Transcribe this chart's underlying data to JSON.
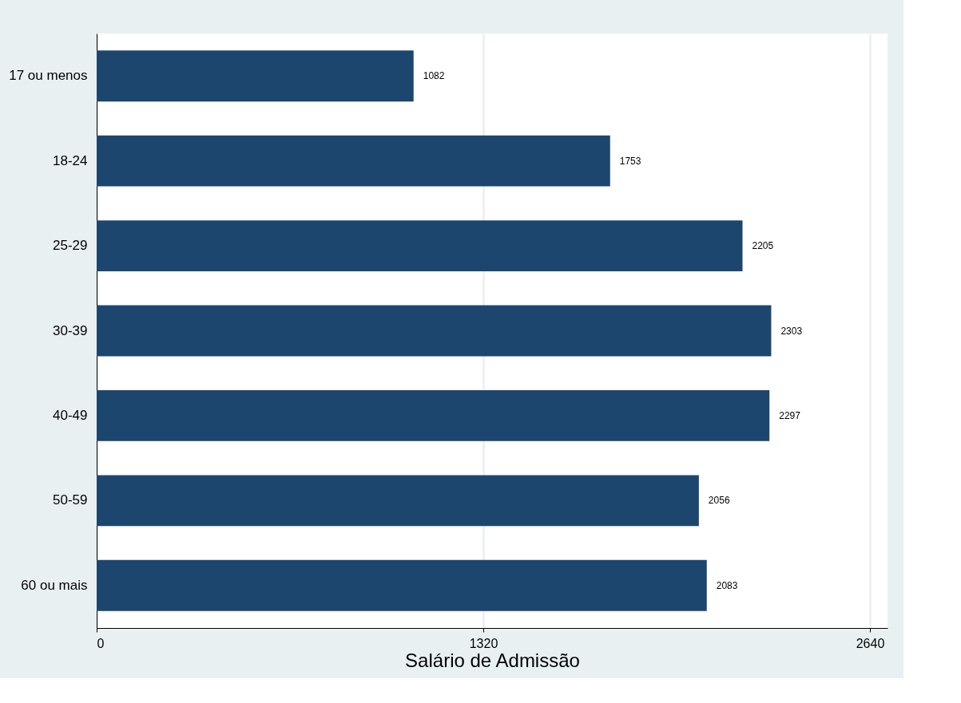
{
  "chart_data": {
    "type": "bar",
    "orientation": "horizontal",
    "xlabel": "Salário de Admissão",
    "categories": [
      "17 ou menos",
      "18-24",
      "25-29",
      "30-39",
      "40-49",
      "50-59",
      "60 ou mais"
    ],
    "values": [
      1082,
      1753,
      2205,
      2303,
      2297,
      2056,
      2083
    ],
    "color": "#1d466e",
    "xlim": [
      0,
      2700
    ],
    "xticks": [
      0,
      1320,
      2640
    ],
    "grid": "x",
    "data_labels": true
  }
}
